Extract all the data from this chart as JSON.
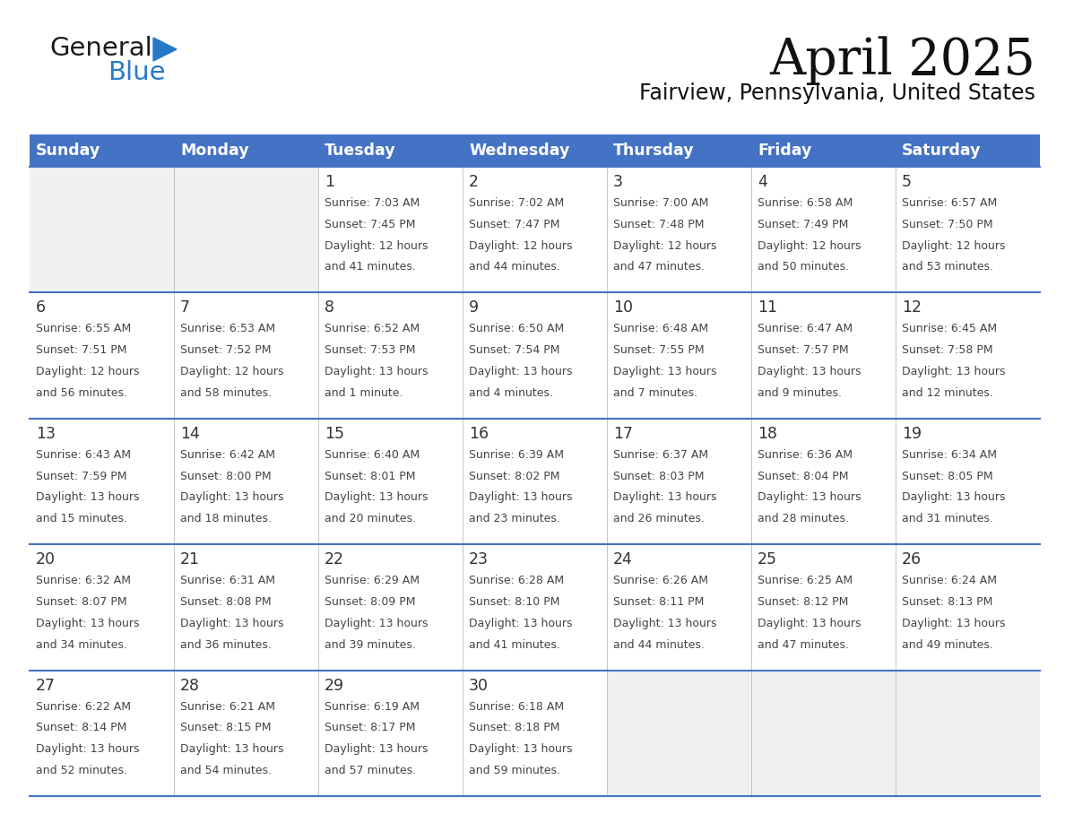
{
  "title": "April 2025",
  "subtitle": "Fairview, Pennsylvania, United States",
  "header_bg": "#4472C4",
  "header_text_color": "#FFFFFF",
  "days_of_week": [
    "Sunday",
    "Monday",
    "Tuesday",
    "Wednesday",
    "Thursday",
    "Friday",
    "Saturday"
  ],
  "grid_line_color": "#4472C4",
  "cell_line_color": "#CCCCCC",
  "text_color": "#333333",
  "empty_cell_bg": "#F0F0F0",
  "filled_cell_bg": "#FFFFFF",
  "logo_text_color": "#1a1a1a",
  "logo_blue_color": "#2878C8",
  "logo_triangle_color": "#2878C8",
  "calendar_data": [
    [
      {
        "day": "",
        "sunrise": "",
        "sunset": "",
        "daylight": ""
      },
      {
        "day": "",
        "sunrise": "",
        "sunset": "",
        "daylight": ""
      },
      {
        "day": "1",
        "sunrise": "Sunrise: 7:03 AM",
        "sunset": "Sunset: 7:45 PM",
        "daylight": "Daylight: 12 hours\nand 41 minutes."
      },
      {
        "day": "2",
        "sunrise": "Sunrise: 7:02 AM",
        "sunset": "Sunset: 7:47 PM",
        "daylight": "Daylight: 12 hours\nand 44 minutes."
      },
      {
        "day": "3",
        "sunrise": "Sunrise: 7:00 AM",
        "sunset": "Sunset: 7:48 PM",
        "daylight": "Daylight: 12 hours\nand 47 minutes."
      },
      {
        "day": "4",
        "sunrise": "Sunrise: 6:58 AM",
        "sunset": "Sunset: 7:49 PM",
        "daylight": "Daylight: 12 hours\nand 50 minutes."
      },
      {
        "day": "5",
        "sunrise": "Sunrise: 6:57 AM",
        "sunset": "Sunset: 7:50 PM",
        "daylight": "Daylight: 12 hours\nand 53 minutes."
      }
    ],
    [
      {
        "day": "6",
        "sunrise": "Sunrise: 6:55 AM",
        "sunset": "Sunset: 7:51 PM",
        "daylight": "Daylight: 12 hours\nand 56 minutes."
      },
      {
        "day": "7",
        "sunrise": "Sunrise: 6:53 AM",
        "sunset": "Sunset: 7:52 PM",
        "daylight": "Daylight: 12 hours\nand 58 minutes."
      },
      {
        "day": "8",
        "sunrise": "Sunrise: 6:52 AM",
        "sunset": "Sunset: 7:53 PM",
        "daylight": "Daylight: 13 hours\nand 1 minute."
      },
      {
        "day": "9",
        "sunrise": "Sunrise: 6:50 AM",
        "sunset": "Sunset: 7:54 PM",
        "daylight": "Daylight: 13 hours\nand 4 minutes."
      },
      {
        "day": "10",
        "sunrise": "Sunrise: 6:48 AM",
        "sunset": "Sunset: 7:55 PM",
        "daylight": "Daylight: 13 hours\nand 7 minutes."
      },
      {
        "day": "11",
        "sunrise": "Sunrise: 6:47 AM",
        "sunset": "Sunset: 7:57 PM",
        "daylight": "Daylight: 13 hours\nand 9 minutes."
      },
      {
        "day": "12",
        "sunrise": "Sunrise: 6:45 AM",
        "sunset": "Sunset: 7:58 PM",
        "daylight": "Daylight: 13 hours\nand 12 minutes."
      }
    ],
    [
      {
        "day": "13",
        "sunrise": "Sunrise: 6:43 AM",
        "sunset": "Sunset: 7:59 PM",
        "daylight": "Daylight: 13 hours\nand 15 minutes."
      },
      {
        "day": "14",
        "sunrise": "Sunrise: 6:42 AM",
        "sunset": "Sunset: 8:00 PM",
        "daylight": "Daylight: 13 hours\nand 18 minutes."
      },
      {
        "day": "15",
        "sunrise": "Sunrise: 6:40 AM",
        "sunset": "Sunset: 8:01 PM",
        "daylight": "Daylight: 13 hours\nand 20 minutes."
      },
      {
        "day": "16",
        "sunrise": "Sunrise: 6:39 AM",
        "sunset": "Sunset: 8:02 PM",
        "daylight": "Daylight: 13 hours\nand 23 minutes."
      },
      {
        "day": "17",
        "sunrise": "Sunrise: 6:37 AM",
        "sunset": "Sunset: 8:03 PM",
        "daylight": "Daylight: 13 hours\nand 26 minutes."
      },
      {
        "day": "18",
        "sunrise": "Sunrise: 6:36 AM",
        "sunset": "Sunset: 8:04 PM",
        "daylight": "Daylight: 13 hours\nand 28 minutes."
      },
      {
        "day": "19",
        "sunrise": "Sunrise: 6:34 AM",
        "sunset": "Sunset: 8:05 PM",
        "daylight": "Daylight: 13 hours\nand 31 minutes."
      }
    ],
    [
      {
        "day": "20",
        "sunrise": "Sunrise: 6:32 AM",
        "sunset": "Sunset: 8:07 PM",
        "daylight": "Daylight: 13 hours\nand 34 minutes."
      },
      {
        "day": "21",
        "sunrise": "Sunrise: 6:31 AM",
        "sunset": "Sunset: 8:08 PM",
        "daylight": "Daylight: 13 hours\nand 36 minutes."
      },
      {
        "day": "22",
        "sunrise": "Sunrise: 6:29 AM",
        "sunset": "Sunset: 8:09 PM",
        "daylight": "Daylight: 13 hours\nand 39 minutes."
      },
      {
        "day": "23",
        "sunrise": "Sunrise: 6:28 AM",
        "sunset": "Sunset: 8:10 PM",
        "daylight": "Daylight: 13 hours\nand 41 minutes."
      },
      {
        "day": "24",
        "sunrise": "Sunrise: 6:26 AM",
        "sunset": "Sunset: 8:11 PM",
        "daylight": "Daylight: 13 hours\nand 44 minutes."
      },
      {
        "day": "25",
        "sunrise": "Sunrise: 6:25 AM",
        "sunset": "Sunset: 8:12 PM",
        "daylight": "Daylight: 13 hours\nand 47 minutes."
      },
      {
        "day": "26",
        "sunrise": "Sunrise: 6:24 AM",
        "sunset": "Sunset: 8:13 PM",
        "daylight": "Daylight: 13 hours\nand 49 minutes."
      }
    ],
    [
      {
        "day": "27",
        "sunrise": "Sunrise: 6:22 AM",
        "sunset": "Sunset: 8:14 PM",
        "daylight": "Daylight: 13 hours\nand 52 minutes."
      },
      {
        "day": "28",
        "sunrise": "Sunrise: 6:21 AM",
        "sunset": "Sunset: 8:15 PM",
        "daylight": "Daylight: 13 hours\nand 54 minutes."
      },
      {
        "day": "29",
        "sunrise": "Sunrise: 6:19 AM",
        "sunset": "Sunset: 8:17 PM",
        "daylight": "Daylight: 13 hours\nand 57 minutes."
      },
      {
        "day": "30",
        "sunrise": "Sunrise: 6:18 AM",
        "sunset": "Sunset: 8:18 PM",
        "daylight": "Daylight: 13 hours\nand 59 minutes."
      },
      {
        "day": "",
        "sunrise": "",
        "sunset": "",
        "daylight": ""
      },
      {
        "day": "",
        "sunrise": "",
        "sunset": "",
        "daylight": ""
      },
      {
        "day": "",
        "sunrise": "",
        "sunset": "",
        "daylight": ""
      }
    ]
  ]
}
